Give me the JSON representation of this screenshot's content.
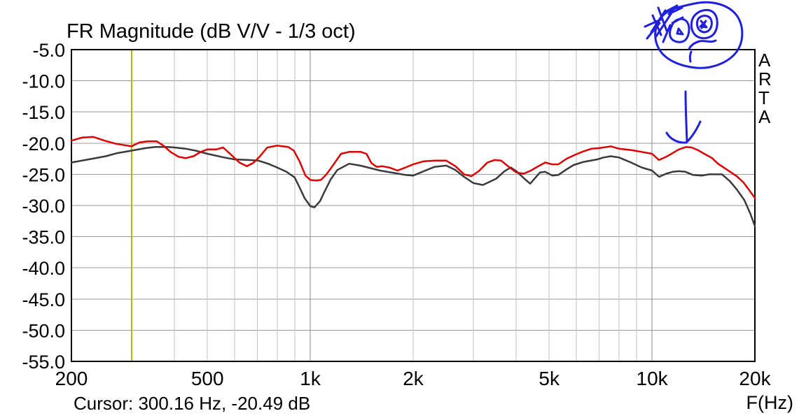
{
  "title": "FR Magnitude (dB V/V - 1/3 oct)",
  "cursor_readout": "Cursor: 300.16 Hz, -20.49 dB",
  "x_axis_unit_label": "F(Hz)",
  "watermark": "ARTA",
  "colors": {
    "background": "#ffffff",
    "frame": "#000000",
    "grid_horizontal": "#9a9a9a",
    "grid_vertical_minor": "#c2c2c2",
    "grid_vertical_major": "#8a8a8a",
    "cursor_line": "#b9b400",
    "trace_red": "#dd0000",
    "trace_dark": "#3a3a3a",
    "annotation_blue": "#2020dd",
    "text": "#000000"
  },
  "chart_data": {
    "type": "line",
    "title": "FR Magnitude (dB V/V - 1/3 oct)",
    "xlabel": "F(Hz)",
    "ylabel": "dB V/V",
    "x_scale": "log",
    "xlim": [
      200,
      20000
    ],
    "ylim": [
      -55,
      -5
    ],
    "grid": true,
    "y_ticks": [
      {
        "value": -5,
        "label": "-5.0"
      },
      {
        "value": -10,
        "label": "-10.0"
      },
      {
        "value": -15,
        "label": "-15.0"
      },
      {
        "value": -20,
        "label": "-20.0"
      },
      {
        "value": -25,
        "label": "-25.0"
      },
      {
        "value": -30,
        "label": "-30.0"
      },
      {
        "value": -35,
        "label": "-35.0"
      },
      {
        "value": -40,
        "label": "-40.0"
      },
      {
        "value": -45,
        "label": "-45.0"
      },
      {
        "value": -50,
        "label": "-50.0"
      },
      {
        "value": -55,
        "label": "-55.0"
      }
    ],
    "x_ticks": [
      {
        "value": 200,
        "label": "200"
      },
      {
        "value": 500,
        "label": "500"
      },
      {
        "value": 1000,
        "label": "1k"
      },
      {
        "value": 2000,
        "label": "2k"
      },
      {
        "value": 5000,
        "label": "5k"
      },
      {
        "value": 10000,
        "label": "10k"
      },
      {
        "value": 20000,
        "label": "20k"
      }
    ],
    "minor_gridlines_hz": [
      300,
      400,
      500,
      600,
      700,
      800,
      900,
      2000,
      3000,
      4000,
      5000,
      6000,
      7000,
      8000,
      9000
    ],
    "major_gridlines_hz": [
      1000,
      10000
    ],
    "cursor": {
      "freq_hz": 300.16,
      "value_db": -20.49
    },
    "series": [
      {
        "name": "trace-dark",
        "color": "#3a3a3a",
        "points": [
          [
            200,
            -23.1
          ],
          [
            230,
            -22.5
          ],
          [
            252,
            -22.1
          ],
          [
            272,
            -21.6
          ],
          [
            300,
            -21.2
          ],
          [
            330,
            -20.8
          ],
          [
            352,
            -20.6
          ],
          [
            382,
            -20.6
          ],
          [
            400,
            -20.7
          ],
          [
            432,
            -20.9
          ],
          [
            462,
            -21.2
          ],
          [
            500,
            -21.7
          ],
          [
            560,
            -22.3
          ],
          [
            600,
            -22.6
          ],
          [
            660,
            -22.7
          ],
          [
            705,
            -22.8
          ],
          [
            752,
            -23.3
          ],
          [
            800,
            -23.9
          ],
          [
            852,
            -24.6
          ],
          [
            900,
            -25.5
          ],
          [
            932,
            -27.2
          ],
          [
            962,
            -28.8
          ],
          [
            1000,
            -30.1
          ],
          [
            1028,
            -30.3
          ],
          [
            1068,
            -29.3
          ],
          [
            1100,
            -27.8
          ],
          [
            1148,
            -25.8
          ],
          [
            1200,
            -24.3
          ],
          [
            1300,
            -23.3
          ],
          [
            1400,
            -23.6
          ],
          [
            1500,
            -24.0
          ],
          [
            1600,
            -24.4
          ],
          [
            1768,
            -24.8
          ],
          [
            1900,
            -25.1
          ],
          [
            2000,
            -25.2
          ],
          [
            2150,
            -24.5
          ],
          [
            2310,
            -23.8
          ],
          [
            2500,
            -23.6
          ],
          [
            2660,
            -24.3
          ],
          [
            2820,
            -25.4
          ],
          [
            3000,
            -26.4
          ],
          [
            3200,
            -26.7
          ],
          [
            3500,
            -25.7
          ],
          [
            3700,
            -24.5
          ],
          [
            3860,
            -23.9
          ],
          [
            4010,
            -24.5
          ],
          [
            4250,
            -25.8
          ],
          [
            4400,
            -26.5
          ],
          [
            4700,
            -24.7
          ],
          [
            4870,
            -24.6
          ],
          [
            5110,
            -25.2
          ],
          [
            5320,
            -25.1
          ],
          [
            5620,
            -24.2
          ],
          [
            5900,
            -23.5
          ],
          [
            6310,
            -23.0
          ],
          [
            6920,
            -22.6
          ],
          [
            7210,
            -22.3
          ],
          [
            7580,
            -22.1
          ],
          [
            8010,
            -22.3
          ],
          [
            8680,
            -23.1
          ],
          [
            9330,
            -23.9
          ],
          [
            10000,
            -24.4
          ],
          [
            10490,
            -25.4
          ],
          [
            11000,
            -24.9
          ],
          [
            11490,
            -24.6
          ],
          [
            11990,
            -24.5
          ],
          [
            12530,
            -24.6
          ],
          [
            13180,
            -25.1
          ],
          [
            13990,
            -25.2
          ],
          [
            14700,
            -25.0
          ],
          [
            15500,
            -25.0
          ],
          [
            16020,
            -25.0
          ],
          [
            16900,
            -26.1
          ],
          [
            17690,
            -27.4
          ],
          [
            18620,
            -29.1
          ],
          [
            19400,
            -31.3
          ],
          [
            20000,
            -33.3
          ]
        ]
      },
      {
        "name": "trace-red",
        "color": "#dd0000",
        "points": [
          [
            200,
            -19.6
          ],
          [
            215,
            -19.1
          ],
          [
            232,
            -19.0
          ],
          [
            250,
            -19.6
          ],
          [
            270,
            -20.1
          ],
          [
            300,
            -20.5
          ],
          [
            316,
            -19.9
          ],
          [
            335,
            -19.7
          ],
          [
            355,
            -19.7
          ],
          [
            372,
            -20.4
          ],
          [
            390,
            -21.4
          ],
          [
            412,
            -22.2
          ],
          [
            432,
            -22.4
          ],
          [
            455,
            -22.1
          ],
          [
            478,
            -21.4
          ],
          [
            500,
            -21.0
          ],
          [
            532,
            -21.0
          ],
          [
            556,
            -20.7
          ],
          [
            590,
            -22.0
          ],
          [
            620,
            -23.1
          ],
          [
            652,
            -23.7
          ],
          [
            680,
            -23.2
          ],
          [
            710,
            -22.2
          ],
          [
            748,
            -20.7
          ],
          [
            800,
            -20.4
          ],
          [
            862,
            -20.6
          ],
          [
            895,
            -21.2
          ],
          [
            930,
            -22.9
          ],
          [
            968,
            -25.2
          ],
          [
            1000,
            -25.9
          ],
          [
            1040,
            -26.0
          ],
          [
            1075,
            -25.9
          ],
          [
            1115,
            -25.0
          ],
          [
            1160,
            -23.7
          ],
          [
            1230,
            -21.7
          ],
          [
            1300,
            -21.4
          ],
          [
            1405,
            -21.4
          ],
          [
            1460,
            -21.7
          ],
          [
            1510,
            -23.2
          ],
          [
            1565,
            -23.8
          ],
          [
            1625,
            -23.7
          ],
          [
            1700,
            -23.9
          ],
          [
            1800,
            -24.4
          ],
          [
            1900,
            -23.9
          ],
          [
            2000,
            -23.4
          ],
          [
            2150,
            -22.9
          ],
          [
            2320,
            -22.8
          ],
          [
            2500,
            -22.8
          ],
          [
            2660,
            -23.7
          ],
          [
            2820,
            -25.0
          ],
          [
            2960,
            -25.3
          ],
          [
            3110,
            -24.5
          ],
          [
            3300,
            -23.1
          ],
          [
            3460,
            -22.7
          ],
          [
            3620,
            -22.8
          ],
          [
            3810,
            -23.8
          ],
          [
            4010,
            -24.7
          ],
          [
            4210,
            -24.9
          ],
          [
            4420,
            -24.4
          ],
          [
            4650,
            -23.7
          ],
          [
            4870,
            -23.1
          ],
          [
            5100,
            -23.4
          ],
          [
            5320,
            -23.4
          ],
          [
            5620,
            -22.5
          ],
          [
            5990,
            -21.8
          ],
          [
            6310,
            -21.3
          ],
          [
            6650,
            -20.9
          ],
          [
            7010,
            -20.8
          ],
          [
            7580,
            -20.5
          ],
          [
            8010,
            -20.9
          ],
          [
            8680,
            -21.1
          ],
          [
            9320,
            -21.4
          ],
          [
            10000,
            -21.7
          ],
          [
            10480,
            -22.7
          ],
          [
            10990,
            -22.2
          ],
          [
            11490,
            -21.6
          ],
          [
            11990,
            -21.0
          ],
          [
            12590,
            -20.6
          ],
          [
            13060,
            -20.7
          ],
          [
            13600,
            -21.1
          ],
          [
            14220,
            -21.7
          ],
          [
            14990,
            -22.4
          ],
          [
            15600,
            -23.3
          ],
          [
            16520,
            -24.2
          ],
          [
            17700,
            -25.3
          ],
          [
            18520,
            -26.3
          ],
          [
            19230,
            -27.5
          ],
          [
            20000,
            -28.8
          ]
        ]
      }
    ],
    "annotations": {
      "color": "#2020dd",
      "items": [
        {
          "name": "hand-drawn-face-doodle",
          "strokes": [
            "M 992,5 C 1015,0 1040,6 1052,22 C 1062,36 1063,58 1052,74 C 1040,90 1016,99 994,97 C 972,95 950,86 941,70 C 933,56 934,38 944,25 C 954,12 974,9 992,5 Z",
            "M 930,46 L 950,15",
            "M 937,52 L 958,20",
            "M 924,55 L 942,33",
            "M 944,50 L 932,22",
            "M 952,44 L 940,11",
            "M 921,38 L 946,27",
            "M 950,17 L 967,8 L 955,20 L 974,11",
            "M 947,60 L 957,36",
            "M 960,33 L 975,25",
            "M 959,38 C 962,28 973,24 980,30 C 986,36 985,50 979,57 C 972,63 960,60 957,52 C 956,47 957,42 959,38 Z",
            "M 969,41 L 975,49 L 967,48 Z",
            "M 992,22 C 1000,13 1014,12 1020,19 C 1026,26 1026,42 1018,50 C 1010,57 997,56 991,48 C 986,41 986,29 992,22 Z",
            "M 997,27 C 1002,21 1011,21 1015,27 C 1018,33 1016,42 1010,45 C 1004,48 998,44 996,38 C 995,34 995,31 997,27 Z",
            "M 1001,30 L 1009,39 L 1000,38 L 1008,30 L 1002,40",
            "M 1022,58 C 1014,62 1006,57 999,59 C 992,61 987,64 984,70",
            "M 987,74 C 985,79 985,84 986,88"
          ]
        },
        {
          "name": "hand-drawn-down-arrow",
          "points_at": "red trace peak near 12.5 kHz",
          "strokes": [
            "M 979,131 C 979,154 980,178 981,202",
            "M 952,190 C 957,199 968,205 980,204",
            "M 1000,174 C 995,185 988,196 981,203"
          ]
        }
      ]
    }
  }
}
